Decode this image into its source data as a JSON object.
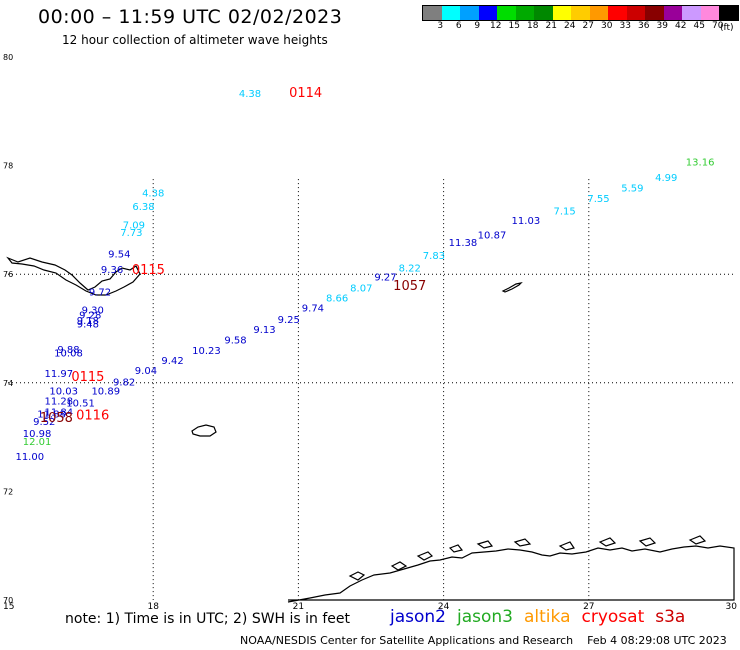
{
  "header": {
    "title": "00:00 – 11:59 UTC 02/02/2023",
    "subtitle": "12 hour collection of altimeter wave heights"
  },
  "color_scale": {
    "swatches": [
      "#7f7f7f",
      "#00ffff",
      "#00a0ff",
      "#0000ff",
      "#00dd00",
      "#00aa00",
      "#008800",
      "#ffff00",
      "#ffcc00",
      "#ff9900",
      "#ff0000",
      "#cc0000",
      "#880000",
      "#990099",
      "#cc99ff",
      "#ff88dd",
      "#000000"
    ],
    "labels": [
      "3",
      "6",
      "9",
      "12",
      "15",
      "18",
      "21",
      "24",
      "27",
      "30",
      "33",
      "36",
      "39",
      "42",
      "45",
      "70"
    ],
    "unit": "(ft)"
  },
  "map": {
    "lon_ticks": [
      "15",
      "18",
      "21",
      "24",
      "27",
      "30"
    ],
    "lat_ticks": [
      "80",
      "78",
      "76",
      "74",
      "72",
      "70"
    ],
    "lon_range": [
      15,
      30
    ],
    "lat_range": [
      70,
      80
    ],
    "grid": "dotted"
  },
  "colors": {
    "cyan": "#00ccff",
    "blue": "#0000cc",
    "green": "#33cc33",
    "red": "#ff0000",
    "dark_red": "#880000"
  },
  "observations": [
    {
      "lon": 20.0,
      "lat": 79.26,
      "value": "4.38",
      "color": "cyan"
    },
    {
      "lon": 18.0,
      "lat": 77.43,
      "value": "4.38",
      "color": "cyan"
    },
    {
      "lon": 17.8,
      "lat": 77.18,
      "value": "6.38",
      "color": "cyan"
    },
    {
      "lon": 17.6,
      "lat": 76.84,
      "value": "7.09",
      "color": "cyan"
    },
    {
      "lon": 17.55,
      "lat": 76.7,
      "value": "7.73",
      "color": "cyan"
    },
    {
      "lon": 17.3,
      "lat": 76.31,
      "value": "9.54",
      "color": "blue"
    },
    {
      "lon": 17.15,
      "lat": 76.02,
      "value": "9.36",
      "color": "blue"
    },
    {
      "lon": 16.9,
      "lat": 75.61,
      "value": "9.72",
      "color": "blue"
    },
    {
      "lon": 16.75,
      "lat": 75.28,
      "value": "9.30",
      "color": "blue"
    },
    {
      "lon": 16.7,
      "lat": 75.18,
      "value": "9.28",
      "color": "blue"
    },
    {
      "lon": 16.65,
      "lat": 75.08,
      "value": "9.18",
      "color": "blue"
    },
    {
      "lon": 16.65,
      "lat": 75.02,
      "value": "9.48",
      "color": "blue"
    },
    {
      "lon": 16.25,
      "lat": 74.55,
      "value": "9.88",
      "color": "blue"
    },
    {
      "lon": 16.25,
      "lat": 74.48,
      "value": "10.08",
      "color": "blue"
    },
    {
      "lon": 16.05,
      "lat": 74.11,
      "value": "11.97",
      "color": "blue"
    },
    {
      "lon": 16.15,
      "lat": 73.78,
      "value": "10.03",
      "color": "blue"
    },
    {
      "lon": 16.05,
      "lat": 73.6,
      "value": "11.28",
      "color": "blue"
    },
    {
      "lon": 16.5,
      "lat": 73.56,
      "value": "10.51",
      "color": "blue"
    },
    {
      "lon": 16.05,
      "lat": 73.4,
      "value": "11.84",
      "color": "blue"
    },
    {
      "lon": 15.9,
      "lat": 73.36,
      "value": "11.88",
      "color": "blue"
    },
    {
      "lon": 15.75,
      "lat": 73.22,
      "value": "9.52",
      "color": "blue"
    },
    {
      "lon": 15.6,
      "lat": 73.0,
      "value": "10.98",
      "color": "blue"
    },
    {
      "lon": 15.6,
      "lat": 72.85,
      "value": "12.01",
      "color": "green"
    },
    {
      "lon": 15.45,
      "lat": 72.58,
      "value": "11.00",
      "color": "blue"
    },
    {
      "lon": 17.02,
      "lat": 73.78,
      "value": "10.89",
      "color": "blue"
    },
    {
      "lon": 17.4,
      "lat": 73.95,
      "value": "9.82",
      "color": "blue"
    },
    {
      "lon": 17.85,
      "lat": 74.16,
      "value": "9.04",
      "color": "blue"
    },
    {
      "lon": 18.4,
      "lat": 74.35,
      "value": "9.42",
      "color": "blue"
    },
    {
      "lon": 19.1,
      "lat": 74.53,
      "value": "10.23",
      "color": "blue"
    },
    {
      "lon": 19.7,
      "lat": 74.72,
      "value": "9.58",
      "color": "blue"
    },
    {
      "lon": 20.3,
      "lat": 74.92,
      "value": "9.13",
      "color": "blue"
    },
    {
      "lon": 20.8,
      "lat": 75.1,
      "value": "9.25",
      "color": "blue"
    },
    {
      "lon": 21.3,
      "lat": 75.31,
      "value": "9.74",
      "color": "blue"
    },
    {
      "lon": 21.8,
      "lat": 75.5,
      "value": "8.66",
      "color": "cyan"
    },
    {
      "lon": 22.3,
      "lat": 75.68,
      "value": "8.07",
      "color": "cyan"
    },
    {
      "lon": 22.8,
      "lat": 75.88,
      "value": "9.27",
      "color": "blue"
    },
    {
      "lon": 23.3,
      "lat": 76.05,
      "value": "8.22",
      "color": "cyan"
    },
    {
      "lon": 23.8,
      "lat": 76.28,
      "value": "7.83",
      "color": "cyan"
    },
    {
      "lon": 24.4,
      "lat": 76.52,
      "value": "11.38",
      "color": "blue"
    },
    {
      "lon": 25.0,
      "lat": 76.66,
      "value": "10.87",
      "color": "blue"
    },
    {
      "lon": 25.7,
      "lat": 76.92,
      "value": "11.03",
      "color": "blue"
    },
    {
      "lon": 26.5,
      "lat": 77.1,
      "value": "7.15",
      "color": "cyan"
    },
    {
      "lon": 27.2,
      "lat": 77.33,
      "value": "7.55",
      "color": "cyan"
    },
    {
      "lon": 27.9,
      "lat": 77.52,
      "value": "5.59",
      "color": "cyan"
    },
    {
      "lon": 28.6,
      "lat": 77.72,
      "value": "4.99",
      "color": "cyan"
    },
    {
      "lon": 29.3,
      "lat": 78.0,
      "value": "13.16",
      "color": "green"
    }
  ],
  "time_labels": [
    {
      "lon": 21.15,
      "lat": 79.26,
      "value": "0114",
      "color": "red"
    },
    {
      "lon": 17.9,
      "lat": 76.0,
      "value": "0115",
      "color": "red"
    },
    {
      "lon": 16.65,
      "lat": 74.03,
      "value": "0115",
      "color": "red"
    },
    {
      "lon": 16.0,
      "lat": 73.28,
      "value": "1058",
      "color": "dark_red"
    },
    {
      "lon": 16.75,
      "lat": 73.32,
      "value": "0116",
      "color": "red"
    },
    {
      "lon": 23.3,
      "lat": 75.71,
      "value": "1057",
      "color": "dark_red"
    }
  ],
  "note": "note:  1) Time is in UTC;  2) SWH is in feet",
  "satellites": [
    {
      "name": "jason2",
      "color": "#0000cc"
    },
    {
      "name": "jason3",
      "color": "#22aa22"
    },
    {
      "name": "altika",
      "color": "#ff9900"
    },
    {
      "name": "cryosat",
      "color": "#ff0000"
    },
    {
      "name": "s3a",
      "color": "#cc0000"
    }
  ],
  "footer": {
    "credit": "NOAA/NESDIS Center for Satellite Applications and Research",
    "timestamp": "Feb  4 08:29:08 UTC 2023"
  }
}
